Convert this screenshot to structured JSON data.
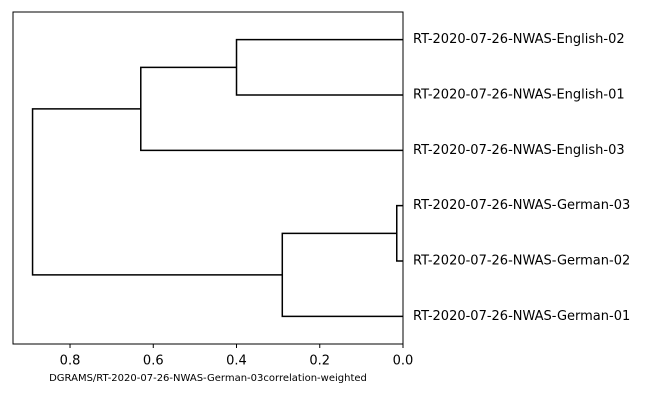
{
  "chart_data": {
    "type": "dendrogram",
    "labels": [
      "RT-2020-07-26-NWAS-English-02",
      "RT-2020-07-26-NWAS-English-01",
      "RT-2020-07-26-NWAS-English-03",
      "RT-2020-07-26-NWAS-German-03",
      "RT-2020-07-26-NWAS-German-02",
      "RT-2020-07-26-NWAS-German-01"
    ],
    "merges": [
      {
        "children": [
          0,
          1
        ],
        "height": 0.4
      },
      {
        "children": [
          3,
          4
        ],
        "height": 0.015
      },
      {
        "children": [
          7,
          5
        ],
        "height": 0.29
      },
      {
        "children": [
          6,
          2
        ],
        "height": 0.63
      },
      {
        "children": [
          9,
          8
        ],
        "height": 0.89
      }
    ],
    "xlim": [
      0.937,
      0
    ],
    "xticks": [
      0.8,
      0.6,
      0.4,
      0.2,
      {
        "value": 0,
        "label": "0.0"
      }
    ],
    "xlabel": "DGRAMS/RT-2020-07-26-NWAS-German-03correlation-weighted",
    "color": "#000000"
  }
}
